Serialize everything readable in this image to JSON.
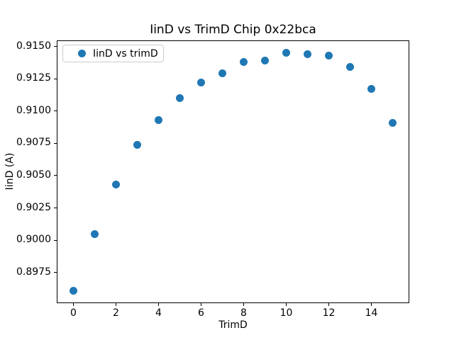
{
  "figure": {
    "background": "#ffffff",
    "spine_color": "#000000"
  },
  "legend": {
    "label": "IinD vs trimD",
    "position": "upper left"
  },
  "chart_data": {
    "type": "scatter",
    "title": "IinD vs TrimD Chip 0x22bca",
    "xlabel": "TrimD",
    "ylabel": "IinD (A)",
    "grid": false,
    "legend_entries": [
      "IinD vs trimD"
    ],
    "marker_color": "#1f77b4",
    "marker_shape": "circle",
    "xlim": [
      -0.75,
      15.75
    ],
    "ylim": [
      0.89518,
      0.91542
    ],
    "x_ticks": [
      0,
      2,
      4,
      6,
      8,
      10,
      12,
      14
    ],
    "x_tick_labels": [
      "0",
      "2",
      "4",
      "6",
      "8",
      "10",
      "12",
      "14"
    ],
    "y_ticks": [
      0.8975,
      0.9,
      0.9025,
      0.905,
      0.9075,
      0.91,
      0.9125,
      0.915
    ],
    "y_tick_labels": [
      "0.8975",
      "0.9000",
      "0.9025",
      "0.9050",
      "0.9075",
      "0.9100",
      "0.9125",
      "0.9150"
    ],
    "series": [
      {
        "name": "IinD vs trimD",
        "x": [
          0,
          1,
          2,
          3,
          4,
          5,
          6,
          7,
          8,
          9,
          10,
          11,
          12,
          13,
          14,
          15
        ],
        "y": [
          0.8961,
          0.9005,
          0.9043,
          0.9074,
          0.9093,
          0.911,
          0.9122,
          0.9129,
          0.9138,
          0.9139,
          0.9145,
          0.9144,
          0.9143,
          0.9134,
          0.9117,
          0.9091
        ]
      }
    ]
  }
}
